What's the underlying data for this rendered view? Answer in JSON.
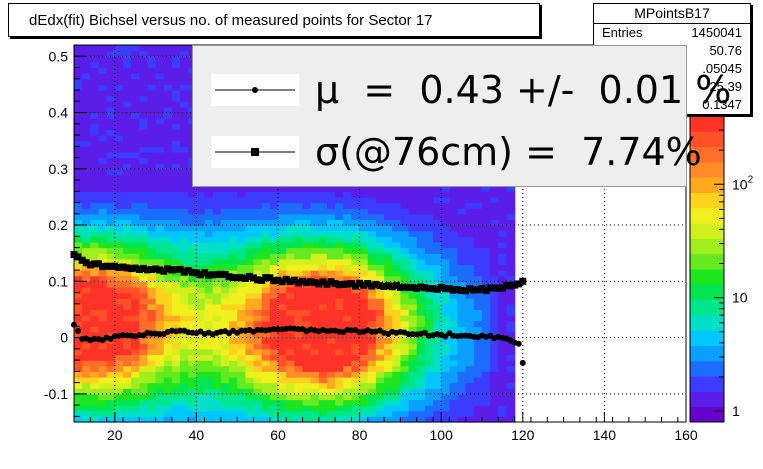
{
  "chart_data": {
    "type": "heatmap",
    "title": "dEdx(fit) Bichsel versus no. of measured points for Sector 17",
    "xlabel": "",
    "ylabel": "",
    "xlim": [
      10,
      160
    ],
    "ylim": [
      -0.15,
      0.52
    ],
    "x_ticks": [
      20,
      40,
      60,
      80,
      100,
      120,
      140,
      160
    ],
    "x_tick_labels": [
      "20",
      "40",
      "60",
      "80",
      "100",
      "120",
      "140",
      "160"
    ],
    "y_ticks": [
      -0.1,
      0,
      0.1,
      0.2,
      0.3,
      0.4,
      0.5
    ],
    "y_tick_labels": [
      "-0.1",
      "0",
      "0.1",
      "0.2",
      "0.3",
      "0.4",
      "0.5"
    ],
    "z_scale": "log",
    "zlim": [
      0.8,
      400
    ],
    "z_ticks": [
      1,
      10,
      100
    ],
    "z_tick_labels": [
      "1",
      "10",
      "10^2"
    ],
    "grid": true,
    "series": [
      {
        "name": "μ",
        "marker": "circle",
        "x": [
          10,
          11,
          12,
          14,
          16,
          20,
          25,
          30,
          35,
          40,
          45,
          50,
          55,
          60,
          65,
          70,
          75,
          80,
          85,
          90,
          95,
          100,
          105,
          110,
          115,
          119,
          120
        ],
        "y": [
          0.022,
          0.01,
          0.0,
          -0.005,
          -0.005,
          0.0,
          0.005,
          0.008,
          0.01,
          0.009,
          0.008,
          0.01,
          0.012,
          0.014,
          0.014,
          0.012,
          0.012,
          0.012,
          0.01,
          0.008,
          0.006,
          0.005,
          0.004,
          0.003,
          0.0,
          -0.01,
          -0.045
        ]
      },
      {
        "name": "σ(@76cm)",
        "marker": "square",
        "x": [
          10,
          12,
          15,
          20,
          25,
          30,
          35,
          40,
          45,
          50,
          55,
          60,
          65,
          70,
          75,
          80,
          85,
          90,
          95,
          100,
          105,
          110,
          115,
          118,
          120
        ],
        "y": [
          0.15,
          0.135,
          0.13,
          0.125,
          0.122,
          0.12,
          0.122,
          0.115,
          0.112,
          0.108,
          0.105,
          0.102,
          0.1,
          0.098,
          0.096,
          0.094,
          0.092,
          0.09,
          0.089,
          0.088,
          0.086,
          0.085,
          0.09,
          0.095,
          0.1
        ]
      }
    ],
    "density_clusters": [
      {
        "x": 12,
        "y": 0.03,
        "sx": 14,
        "sy": 0.09
      },
      {
        "x": 72,
        "y": 0.02,
        "sx": 14,
        "sy": 0.09
      },
      {
        "x": 45,
        "y": 0.02,
        "sx": 45,
        "sy": 0.13
      }
    ]
  },
  "title_box": {
    "text": "dEdx(fit) Bichsel versus no. of measured points for Sector 17"
  },
  "stats": {
    "name": "MPointsB17",
    "rows": [
      {
        "key": "Entries",
        "value": "1450041"
      },
      {
        "key": "",
        "value": "50.76"
      },
      {
        "key": "",
        "value": ".05045"
      },
      {
        "key": "",
        "value": "25.39"
      },
      {
        "key": "",
        "value": "0.1347"
      }
    ]
  },
  "legend": {
    "mu_text": "μ  =  0.43 +/-  0.01 %",
    "sigma_text": "σ(@76cm) =  7.74%"
  },
  "colors": {
    "frame": "#000000",
    "grid": "#000000",
    "legend_bg": "#eeeeee",
    "marker": "#000000"
  },
  "palette": [
    "#6600cc",
    "#5a1ee8",
    "#3b3cff",
    "#1c6cff",
    "#0aa0ff",
    "#00c8ff",
    "#00e0c8",
    "#00e68c",
    "#00e650",
    "#1ee61e",
    "#64ea1e",
    "#a0ee1e",
    "#d2f01e",
    "#f0f01e",
    "#ffd21e",
    "#ffaa1e",
    "#ff8c28",
    "#ff6e28",
    "#ff5028",
    "#ff3228"
  ]
}
